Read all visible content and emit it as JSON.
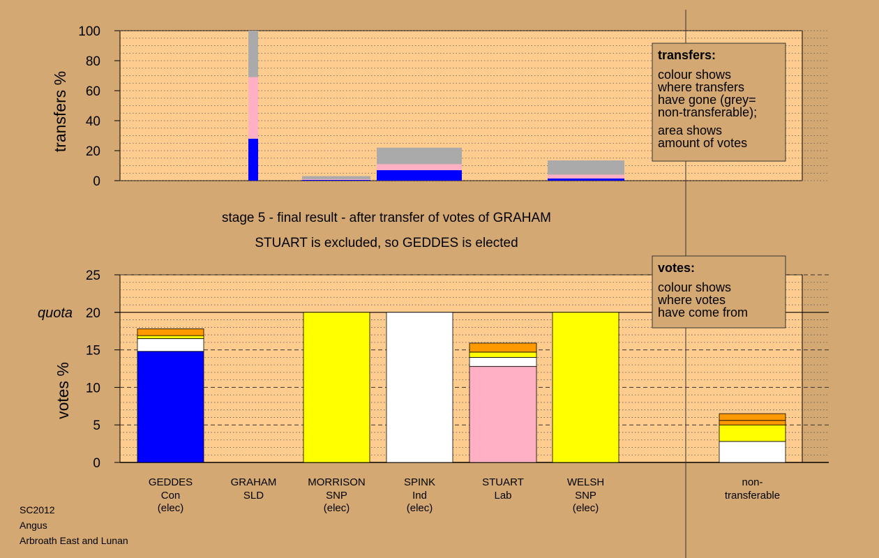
{
  "title_line1": "stage 5 - final result - after transfer of votes of GRAHAM",
  "title_line2": "STUART is excluded, so GEDDES is elected",
  "footer": {
    "line1": "SC2012",
    "line2": "Angus",
    "line3": "Arbroath East and Lunan"
  },
  "colors": {
    "page_bg": "#D4A872",
    "plot_bg": "#FFCC8F",
    "Con": "#0000FF",
    "Lab": "#FFB0C4",
    "SNP": "#FFFF00",
    "Ind": "#FFFFFF",
    "SLD": "#FF9900",
    "nontransferable": "#AAAAAA"
  },
  "chart_data": [
    {
      "type": "bar",
      "id": "transfers",
      "ylabel": "transfers %",
      "ylim": [
        0,
        100
      ],
      "yticks": [
        0,
        20,
        40,
        60,
        80,
        100
      ],
      "grid": true,
      "legend": {
        "title": "transfers:",
        "lines": [
          "colour shows",
          "where transfers",
          "have gone (grey=",
          "non-transferable);",
          "area shows",
          "amount of votes"
        ],
        "placement": "top-right"
      },
      "bars": [
        {
          "candidate": "GRAHAM",
          "segments": [
            {
              "party": "Con",
              "value": 28
            },
            {
              "party": "Lab",
              "value": 41
            },
            {
              "party": "nontransferable",
              "value": 31
            }
          ]
        },
        {
          "candidate": "MORRISON",
          "segments": [
            {
              "party": "Con",
              "value": 0.5
            },
            {
              "party": "Lab",
              "value": 0.5
            },
            {
              "party": "nontransferable",
              "value": 2
            }
          ]
        },
        {
          "candidate": "SPINK",
          "segments": [
            {
              "party": "Con",
              "value": 7
            },
            {
              "party": "Lab",
              "value": 4
            },
            {
              "party": "nontransferable",
              "value": 11
            }
          ]
        },
        {
          "candidate": "WELSH",
          "segments": [
            {
              "party": "Con",
              "value": 1.5
            },
            {
              "party": "Lab",
              "value": 2.5
            },
            {
              "party": "nontransferable",
              "value": 9.5
            }
          ]
        }
      ]
    },
    {
      "type": "bar",
      "id": "votes",
      "ylabel": "votes %",
      "ylim": [
        0,
        25
      ],
      "yticks": [
        0,
        5,
        10,
        15,
        20,
        25
      ],
      "quota": 20,
      "quota_label": "quota",
      "grid": true,
      "legend": {
        "title": "votes:",
        "lines": [
          "colour shows",
          "where votes",
          "have come from"
        ],
        "placement": "top-right"
      },
      "categories": [
        {
          "name": "GEDDES",
          "party": "Con",
          "status": "(elec)"
        },
        {
          "name": "GRAHAM",
          "party": "SLD",
          "status": ""
        },
        {
          "name": "MORRISON",
          "party": "SNP",
          "status": "(elec)"
        },
        {
          "name": "SPINK",
          "party": "Ind",
          "status": "(elec)"
        },
        {
          "name": "STUART",
          "party": "Lab",
          "status": ""
        },
        {
          "name": "WELSH",
          "party": "SNP",
          "status": "(elec)"
        },
        {
          "name": "non-",
          "party": "transferable",
          "status": ""
        }
      ],
      "bars": [
        {
          "candidate": "GEDDES",
          "segments": [
            {
              "party": "Con",
              "value": 14.8
            },
            {
              "party": "Ind",
              "value": 1.7
            },
            {
              "party": "SNP",
              "value": 0.4
            },
            {
              "party": "SLD",
              "value": 0.9
            }
          ]
        },
        {
          "candidate": "GRAHAM",
          "segments": []
        },
        {
          "candidate": "MORRISON",
          "segments": [
            {
              "party": "SNP",
              "value": 20
            }
          ]
        },
        {
          "candidate": "SPINK",
          "segments": [
            {
              "party": "Ind",
              "value": 20
            }
          ]
        },
        {
          "candidate": "STUART",
          "segments": [
            {
              "party": "Lab",
              "value": 12.8
            },
            {
              "party": "Ind",
              "value": 1.2
            },
            {
              "party": "SNP",
              "value": 0.7
            },
            {
              "party": "SLD",
              "value": 1.2
            }
          ]
        },
        {
          "candidate": "WELSH",
          "segments": [
            {
              "party": "SNP",
              "value": 20
            }
          ]
        },
        {
          "candidate": "nontransferable",
          "segments": [
            {
              "party": "Ind",
              "value": 2.8
            },
            {
              "party": "SNP",
              "value": 2.2
            },
            {
              "party": "SLD",
              "value": 0.6
            },
            {
              "party": "SLD",
              "value": 0.9
            }
          ]
        }
      ]
    }
  ]
}
